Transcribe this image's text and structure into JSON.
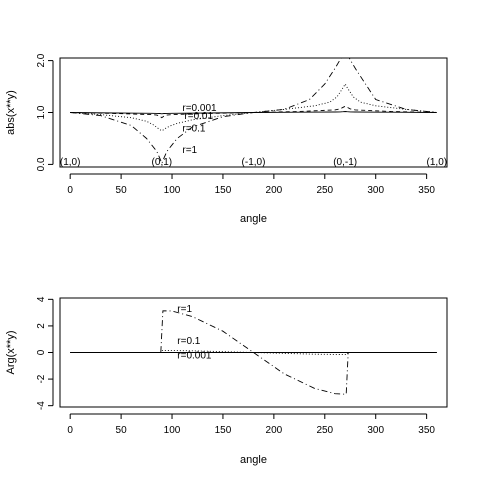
{
  "chart_data": [
    {
      "type": "line",
      "title": "",
      "xlabel": "angle",
      "ylabel": "abs(x**y)",
      "xlim": [
        -10,
        370
      ],
      "ylim": [
        -0.05,
        2.05
      ],
      "xticks": [
        "0",
        "50",
        "100",
        "150",
        "200",
        "250",
        "300",
        "350"
      ],
      "xtick_values": [
        0,
        50,
        100,
        150,
        200,
        250,
        300,
        350
      ],
      "yticks": [
        "0.0",
        "1.0",
        "2.0"
      ],
      "ytick_values": [
        0,
        1,
        2
      ],
      "grid": false,
      "annotations": [
        {
          "text": "(1,0)",
          "x": 0,
          "y": 0
        },
        {
          "text": "(0,1)",
          "x": 90,
          "y": 0
        },
        {
          "text": "(-1,0)",
          "x": 180,
          "y": 0
        },
        {
          "text": "(0,-1)",
          "x": 270,
          "y": 0
        },
        {
          "text": "(1,0)",
          "x": 360,
          "y": 0
        },
        {
          "text": "r=0.001",
          "x": 120,
          "y": 1.03
        },
        {
          "text": "r=0.01",
          "x": 122,
          "y": 0.87
        },
        {
          "text": "r=0.1",
          "x": 120,
          "y": 0.63
        },
        {
          "text": "r=1",
          "x": 120,
          "y": 0.22
        }
      ],
      "series": [
        {
          "style": "solid",
          "x": [
            0,
            45,
            80,
            85,
            88,
            90,
            92,
            95,
            100,
            135,
            180,
            225,
            260,
            265,
            268,
            270,
            272,
            275,
            280,
            315,
            360
          ],
          "y": [
            1.0,
            0.99,
            0.985,
            0.983,
            0.98,
            0.975,
            0.98,
            0.983,
            0.985,
            0.99,
            1.0,
            1.005,
            1.01,
            1.012,
            1.016,
            1.02,
            1.016,
            1.012,
            1.01,
            1.005,
            1.0
          ]
        },
        {
          "style": "dashed",
          "x": [
            0,
            45,
            80,
            85,
            88,
            90,
            92,
            95,
            100,
            135,
            180,
            225,
            260,
            265,
            268,
            270,
            272,
            275,
            280,
            315,
            360
          ],
          "y": [
            1.0,
            0.98,
            0.96,
            0.95,
            0.93,
            0.9,
            0.93,
            0.95,
            0.96,
            0.98,
            1.0,
            1.02,
            1.05,
            1.07,
            1.1,
            1.12,
            1.1,
            1.07,
            1.05,
            1.02,
            1.0
          ]
        },
        {
          "style": "dotted",
          "x": [
            0,
            30,
            60,
            75,
            82,
            86,
            88,
            90,
            92,
            94,
            98,
            105,
            120,
            150,
            180,
            210,
            240,
            255,
            262,
            266,
            268,
            270,
            272,
            274,
            278,
            285,
            300,
            330,
            360
          ],
          "y": [
            1.0,
            0.96,
            0.9,
            0.83,
            0.76,
            0.7,
            0.67,
            0.65,
            0.67,
            0.7,
            0.74,
            0.79,
            0.86,
            0.94,
            1.0,
            1.06,
            1.13,
            1.2,
            1.3,
            1.42,
            1.48,
            1.55,
            1.48,
            1.42,
            1.3,
            1.2,
            1.13,
            1.06,
            1.0
          ]
        },
        {
          "style": "dotdash",
          "x": [
            0,
            30,
            60,
            75,
            85,
            88,
            90,
            92,
            95,
            105,
            120,
            150,
            180,
            210,
            235,
            250,
            260,
            266,
            268,
            270,
            272,
            274,
            280,
            290,
            300,
            330,
            360
          ],
          "y": [
            1.0,
            0.94,
            0.75,
            0.5,
            0.25,
            0.12,
            0.02,
            0.12,
            0.25,
            0.5,
            0.72,
            0.92,
            1.0,
            1.06,
            1.25,
            1.55,
            1.85,
            2.05,
            2.05,
            2.05,
            2.05,
            2.05,
            1.85,
            1.55,
            1.25,
            1.06,
            1.0
          ]
        }
      ]
    },
    {
      "type": "line",
      "title": "",
      "xlabel": "angle",
      "ylabel": "Arg(x**y)",
      "xlim": [
        -10,
        370
      ],
      "ylim": [
        -4.1,
        4.1
      ],
      "xticks": [
        "0",
        "50",
        "100",
        "150",
        "200",
        "250",
        "300",
        "350"
      ],
      "xtick_values": [
        0,
        50,
        100,
        150,
        200,
        250,
        300,
        350
      ],
      "yticks": [
        "-4",
        "-2",
        "0",
        "2",
        "4"
      ],
      "ytick_values": [
        -4,
        -2,
        0,
        2,
        4
      ],
      "grid": false,
      "annotations": [
        {
          "text": "r=1",
          "x": 115,
          "y": 3.05
        },
        {
          "text": "r=0.1",
          "x": 115,
          "y": 0.65
        },
        {
          "text": "r=0.001",
          "x": 115,
          "y": -0.45
        }
      ],
      "series": [
        {
          "style": "solid",
          "x": [
            0,
            360
          ],
          "y": [
            0.0,
            0.0
          ]
        },
        {
          "style": "dotted",
          "x": [
            0,
            89,
            90,
            120,
            180,
            240,
            272,
            273,
            360
          ],
          "y": [
            0.0,
            0.0,
            0.16,
            0.13,
            0.0,
            -0.13,
            -0.16,
            0.0,
            0.0
          ]
        },
        {
          "style": "dotdash",
          "x": [
            0,
            89,
            91,
            100,
            120,
            150,
            180,
            210,
            240,
            260,
            270,
            271,
            273,
            360
          ],
          "y": [
            0.0,
            0.0,
            3.14,
            3.12,
            2.7,
            1.6,
            0.0,
            -1.6,
            -2.7,
            -3.1,
            -3.14,
            -3.14,
            0.0,
            0.0
          ]
        }
      ]
    }
  ]
}
